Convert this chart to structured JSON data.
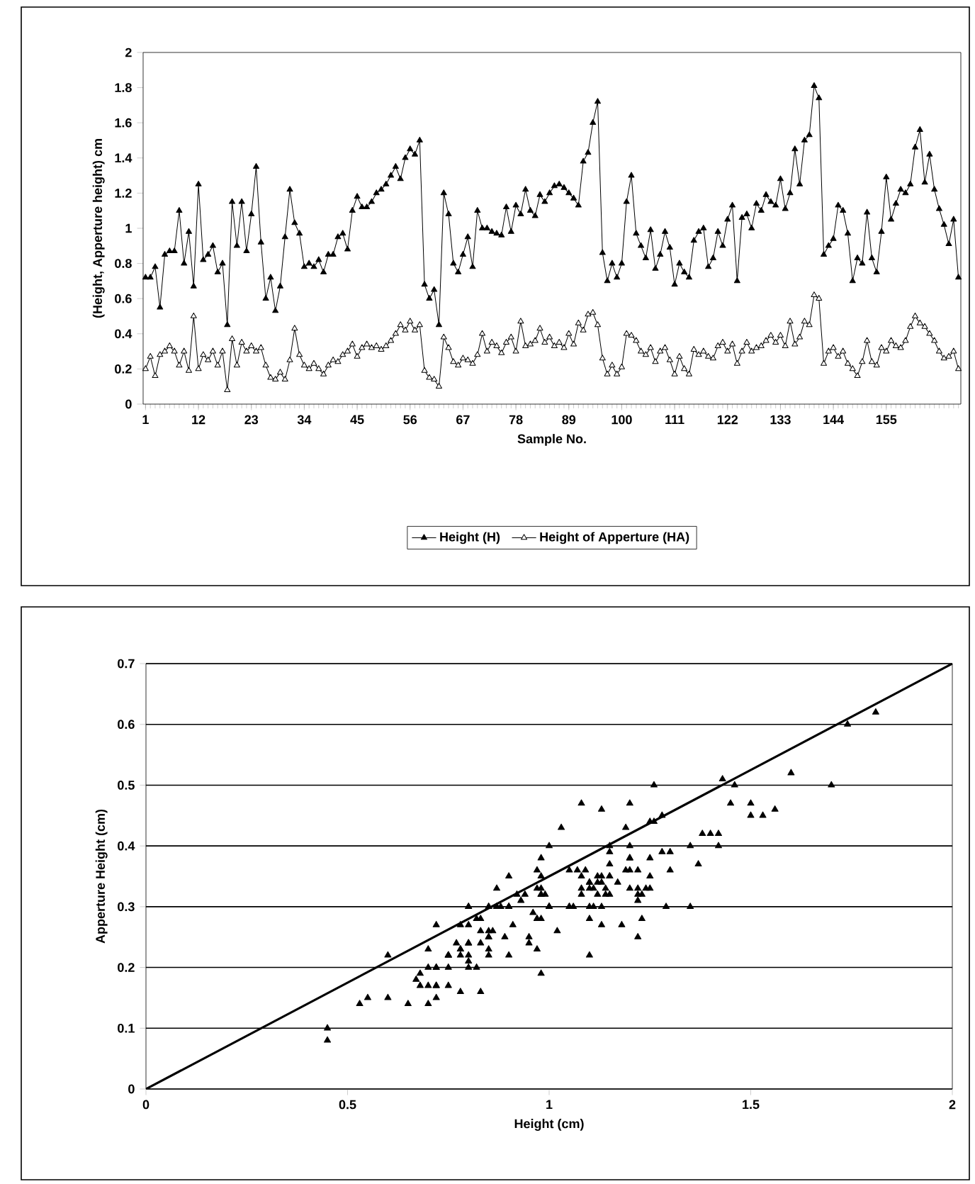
{
  "chart_data": [
    {
      "type": "line",
      "xlabel": "Sample No.",
      "ylabel": "(Height, Apperture height) cm",
      "marker": "triangle",
      "legend": "bottom",
      "grid": false,
      "xlim": [
        0.5,
        170.5
      ],
      "xticks": [
        1,
        12,
        23,
        34,
        45,
        56,
        67,
        78,
        89,
        100,
        111,
        122,
        133,
        144,
        155
      ],
      "ylim": [
        0,
        2
      ],
      "yticks": [
        0,
        0.2,
        0.4,
        0.6,
        0.8,
        1,
        1.2,
        1.4,
        1.6,
        1.8,
        2
      ],
      "x": [
        1,
        2,
        3,
        4,
        5,
        6,
        7,
        8,
        9,
        10,
        11,
        12,
        13,
        14,
        15,
        16,
        17,
        18,
        19,
        20,
        21,
        22,
        23,
        24,
        25,
        26,
        27,
        28,
        29,
        30,
        31,
        32,
        33,
        34,
        35,
        36,
        37,
        38,
        39,
        40,
        41,
        42,
        43,
        44,
        45,
        46,
        47,
        48,
        49,
        50,
        51,
        52,
        53,
        54,
        55,
        56,
        57,
        58,
        59,
        60,
        61,
        62,
        63,
        64,
        65,
        66,
        67,
        68,
        69,
        70,
        71,
        72,
        73,
        74,
        75,
        76,
        77,
        78,
        79,
        80,
        81,
        82,
        83,
        84,
        85,
        86,
        87,
        88,
        89,
        90,
        91,
        92,
        93,
        94,
        95,
        96,
        97,
        98,
        99,
        100,
        101,
        102,
        103,
        104,
        105,
        106,
        107,
        108,
        109,
        110,
        111,
        112,
        113,
        114,
        115,
        116,
        117,
        118,
        119,
        120,
        121,
        122,
        123,
        124,
        125,
        126,
        127,
        128,
        129,
        130,
        131,
        132,
        133,
        134,
        135,
        136,
        137,
        138,
        139,
        140,
        141,
        142,
        143,
        144,
        145,
        146,
        147,
        148,
        149,
        150,
        151,
        152,
        153,
        154,
        155,
        156,
        157,
        158,
        159,
        160,
        161,
        162,
        163,
        164,
        165,
        166,
        167,
        168,
        169,
        170
      ],
      "series": [
        {
          "name": "Height (H)",
          "color": "#000000",
          "values": [
            0.72,
            0.72,
            0.78,
            0.55,
            0.85,
            0.87,
            0.87,
            1.1,
            0.8,
            0.98,
            0.67,
            1.25,
            0.82,
            0.85,
            0.9,
            0.75,
            0.8,
            0.45,
            1.15,
            0.9,
            1.15,
            0.87,
            1.08,
            1.35,
            0.92,
            0.6,
            0.72,
            0.53,
            0.67,
            0.95,
            1.22,
            1.03,
            0.97,
            0.78,
            0.8,
            0.78,
            0.82,
            0.75,
            0.85,
            0.85,
            0.95,
            0.97,
            0.88,
            1.1,
            1.18,
            1.12,
            1.12,
            1.15,
            1.2,
            1.22,
            1.25,
            1.3,
            1.35,
            1.28,
            1.4,
            1.45,
            1.42,
            1.5,
            0.68,
            0.6,
            0.65,
            0.45,
            1.2,
            1.08,
            0.8,
            0.75,
            0.85,
            0.95,
            0.78,
            1.1,
            1.0,
            1.0,
            0.98,
            0.97,
            0.96,
            1.12,
            0.98,
            1.13,
            1.08,
            1.22,
            1.1,
            1.07,
            1.19,
            1.15,
            1.2,
            1.24,
            1.25,
            1.23,
            1.2,
            1.17,
            1.13,
            1.38,
            1.43,
            1.6,
            1.72,
            0.86,
            0.7,
            0.8,
            0.72,
            0.8,
            1.15,
            1.3,
            0.97,
            0.9,
            0.83,
            0.99,
            0.77,
            0.85,
            0.98,
            0.89,
            0.68,
            0.8,
            0.75,
            0.72,
            0.93,
            0.98,
            1.0,
            0.78,
            0.83,
            0.98,
            0.9,
            1.05,
            1.13,
            0.7,
            1.06,
            1.08,
            1.0,
            1.14,
            1.1,
            1.19,
            1.15,
            1.13,
            1.28,
            1.11,
            1.2,
            1.45,
            1.25,
            1.5,
            1.53,
            1.81,
            1.74,
            0.85,
            0.9,
            0.94,
            1.13,
            1.1,
            0.97,
            0.7,
            0.83,
            0.8,
            1.09,
            0.83,
            0.75,
            0.98,
            1.29,
            1.05,
            1.14,
            1.22,
            1.2,
            1.25,
            1.46,
            1.56,
            1.26,
            1.42,
            1.22,
            1.11,
            1.02,
            0.91,
            1.05,
            0.72
          ]
        },
        {
          "name": "Height of Apperture (HA)",
          "color": "#000000",
          "values": [
            0.2,
            0.27,
            0.16,
            0.28,
            0.3,
            0.33,
            0.3,
            0.22,
            0.3,
            0.19,
            0.5,
            0.2,
            0.28,
            0.25,
            0.3,
            0.22,
            0.3,
            0.08,
            0.37,
            0.22,
            0.35,
            0.3,
            0.33,
            0.3,
            0.32,
            0.22,
            0.15,
            0.14,
            0.18,
            0.14,
            0.25,
            0.43,
            0.28,
            0.22,
            0.2,
            0.23,
            0.2,
            0.17,
            0.22,
            0.25,
            0.24,
            0.28,
            0.3,
            0.34,
            0.27,
            0.32,
            0.34,
            0.32,
            0.33,
            0.31,
            0.33,
            0.36,
            0.4,
            0.45,
            0.42,
            0.47,
            0.42,
            0.45,
            0.19,
            0.15,
            0.14,
            0.1,
            0.38,
            0.32,
            0.24,
            0.22,
            0.26,
            0.25,
            0.23,
            0.28,
            0.4,
            0.3,
            0.35,
            0.33,
            0.29,
            0.35,
            0.38,
            0.3,
            0.47,
            0.33,
            0.34,
            0.36,
            0.43,
            0.35,
            0.38,
            0.33,
            0.35,
            0.32,
            0.4,
            0.34,
            0.46,
            0.42,
            0.51,
            0.52,
            0.45,
            0.26,
            0.17,
            0.22,
            0.17,
            0.21,
            0.4,
            0.39,
            0.36,
            0.3,
            0.28,
            0.32,
            0.24,
            0.3,
            0.32,
            0.25,
            0.17,
            0.27,
            0.2,
            0.17,
            0.31,
            0.28,
            0.3,
            0.27,
            0.26,
            0.33,
            0.35,
            0.3,
            0.34,
            0.23,
            0.3,
            0.35,
            0.3,
            0.32,
            0.33,
            0.36,
            0.39,
            0.35,
            0.39,
            0.33,
            0.47,
            0.34,
            0.38,
            0.47,
            0.45,
            0.62,
            0.6,
            0.23,
            0.3,
            0.32,
            0.27,
            0.3,
            0.23,
            0.2,
            0.16,
            0.24,
            0.36,
            0.24,
            0.22,
            0.32,
            0.3,
            0.36,
            0.33,
            0.32,
            0.36,
            0.44,
            0.5,
            0.46,
            0.44,
            0.4,
            0.36,
            0.3,
            0.26,
            0.27,
            0.3,
            0.2
          ]
        }
      ]
    },
    {
      "type": "scatter",
      "xlabel": "Height (cm)",
      "ylabel": "Apperture Height (cm)",
      "marker": "triangle",
      "grid": "y",
      "xlim": [
        0,
        2
      ],
      "xticks": [
        0,
        0.5,
        1,
        1.5,
        2
      ],
      "ylim": [
        0,
        0.7
      ],
      "yticks": [
        0,
        0.1,
        0.2,
        0.3,
        0.4,
        0.5,
        0.6,
        0.7
      ],
      "series": [
        {
          "color": "#000000",
          "x": [
            0.72,
            0.72,
            0.78,
            0.55,
            0.85,
            0.87,
            0.87,
            1.1,
            0.8,
            0.98,
            1.26,
            1.23,
            0.82,
            0.85,
            0.9,
            0.75,
            0.8,
            0.45,
            1.15,
            0.9,
            1.15,
            0.87,
            1.08,
            1.35,
            0.92,
            0.6,
            0.72,
            0.53,
            0.67,
            0.7,
            1.22,
            1.03,
            0.97,
            0.78,
            0.8,
            0.78,
            0.82,
            0.75,
            0.85,
            0.85,
            0.95,
            0.97,
            0.88,
            1.1,
            1.18,
            1.12,
            1.12,
            1.15,
            1.2,
            1.22,
            1.25,
            1.3,
            1.35,
            1.28,
            1.4,
            1.45,
            1.42,
            1.5,
            0.68,
            0.6,
            0.65,
            0.45,
            1.2,
            1.08,
            0.8,
            0.75,
            0.85,
            0.95,
            0.78,
            1.1,
            1.0,
            1.0,
            0.98,
            0.97,
            0.96,
            1.12,
            0.98,
            1.13,
            1.08,
            1.22,
            1.1,
            1.07,
            1.19,
            1.15,
            1.2,
            1.24,
            1.25,
            1.23,
            1.2,
            1.17,
            1.13,
            1.38,
            1.43,
            1.6,
            1.7,
            0.86,
            0.7,
            0.8,
            0.72,
            0.8,
            1.15,
            1.3,
            0.97,
            0.9,
            0.83,
            0.99,
            0.77,
            0.85,
            0.98,
            0.89,
            0.68,
            0.8,
            0.75,
            0.72,
            0.93,
            0.98,
            1.0,
            0.78,
            0.83,
            0.98,
            0.9,
            1.05,
            1.13,
            0.7,
            1.06,
            1.08,
            1.0,
            1.14,
            1.1,
            1.19,
            1.15,
            1.13,
            1.28,
            1.11,
            1.2,
            1.37,
            1.25,
            1.5,
            1.53,
            1.81,
            1.74,
            0.85,
            0.9,
            0.94,
            1.13,
            1.1,
            0.97,
            0.7,
            0.83,
            0.8,
            1.09,
            0.83,
            0.75,
            0.98,
            1.29,
            1.05,
            1.14,
            1.22,
            1.2,
            1.25,
            1.46,
            1.56,
            1.26,
            1.42,
            1.22,
            1.11,
            1.02,
            0.91,
            1.05,
            0.72
          ],
          "values": [
            0.2,
            0.27,
            0.16,
            0.15,
            0.3,
            0.33,
            0.3,
            0.22,
            0.3,
            0.19,
            0.5,
            0.28,
            0.28,
            0.25,
            0.3,
            0.22,
            0.3,
            0.08,
            0.37,
            0.22,
            0.35,
            0.3,
            0.33,
            0.3,
            0.32,
            0.22,
            0.15,
            0.14,
            0.18,
            0.14,
            0.25,
            0.43,
            0.28,
            0.22,
            0.2,
            0.23,
            0.2,
            0.17,
            0.22,
            0.25,
            0.24,
            0.28,
            0.3,
            0.34,
            0.27,
            0.32,
            0.34,
            0.32,
            0.33,
            0.31,
            0.33,
            0.36,
            0.4,
            0.45,
            0.42,
            0.47,
            0.42,
            0.45,
            0.19,
            0.15,
            0.14,
            0.1,
            0.38,
            0.32,
            0.24,
            0.22,
            0.26,
            0.25,
            0.23,
            0.28,
            0.4,
            0.3,
            0.35,
            0.33,
            0.29,
            0.35,
            0.38,
            0.3,
            0.47,
            0.33,
            0.34,
            0.36,
            0.43,
            0.35,
            0.38,
            0.33,
            0.35,
            0.32,
            0.4,
            0.34,
            0.46,
            0.42,
            0.51,
            0.52,
            0.5,
            0.26,
            0.17,
            0.22,
            0.17,
            0.21,
            0.4,
            0.39,
            0.36,
            0.3,
            0.28,
            0.32,
            0.24,
            0.3,
            0.32,
            0.25,
            0.17,
            0.27,
            0.2,
            0.17,
            0.31,
            0.28,
            0.3,
            0.27,
            0.26,
            0.33,
            0.35,
            0.3,
            0.34,
            0.23,
            0.3,
            0.35,
            0.3,
            0.32,
            0.33,
            0.36,
            0.39,
            0.35,
            0.39,
            0.33,
            0.47,
            0.37,
            0.38,
            0.47,
            0.45,
            0.62,
            0.6,
            0.23,
            0.3,
            0.32,
            0.27,
            0.3,
            0.23,
            0.2,
            0.16,
            0.24,
            0.36,
            0.24,
            0.22,
            0.32,
            0.3,
            0.36,
            0.33,
            0.32,
            0.36,
            0.44,
            0.5,
            0.46,
            0.44,
            0.4,
            0.36,
            0.3,
            0.26,
            0.27,
            0.3,
            0.2
          ]
        },
        {
          "type": "line",
          "marker": "none",
          "color": "#000000",
          "x": [
            0,
            2
          ],
          "values": [
            0,
            0.7
          ]
        }
      ]
    }
  ]
}
